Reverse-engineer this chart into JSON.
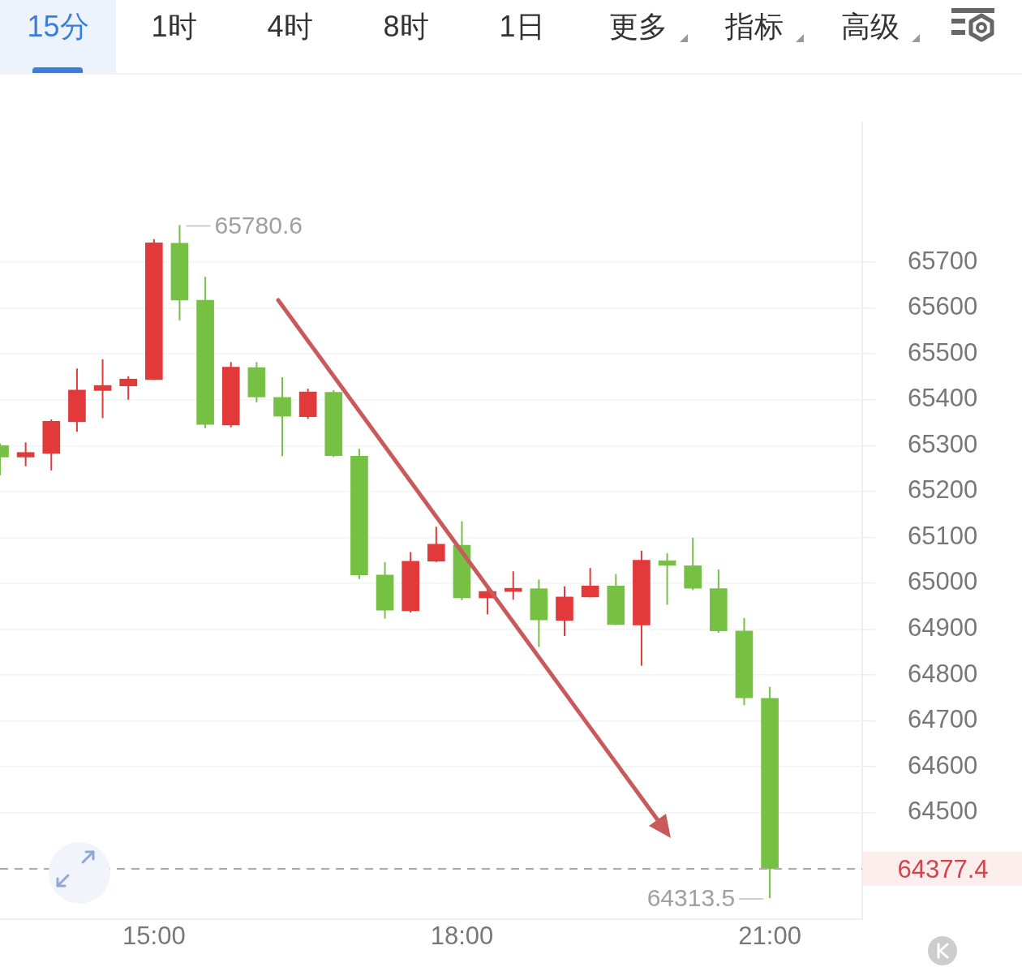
{
  "chart_data": {
    "type": "candlestick",
    "x": [
      13.5,
      13.75,
      14,
      14.25,
      14.5,
      14.75,
      15,
      15.25,
      15.5,
      15.75,
      16,
      16.25,
      16.5,
      16.75,
      17,
      17.25,
      17.5,
      17.75,
      18,
      18.25,
      18.5,
      18.75,
      19,
      19.25,
      19.5,
      19.75,
      20,
      20.25,
      20.5,
      20.75,
      21
    ],
    "ohlc": [
      [
        65300,
        65305,
        65235,
        65275
      ],
      [
        65275,
        65307,
        65255,
        65285
      ],
      [
        65283,
        65357,
        65246,
        65353
      ],
      [
        65352,
        65468,
        65330,
        65421
      ],
      [
        65420,
        65488,
        65360,
        65431
      ],
      [
        65430,
        65451,
        65400,
        65445
      ],
      [
        65444,
        65750,
        65443,
        65742
      ],
      [
        65741,
        65780.6,
        65573,
        65617
      ],
      [
        65617,
        65668,
        65338,
        65346
      ],
      [
        65345,
        65482,
        65340,
        65471
      ],
      [
        65470,
        65482,
        65394,
        65406
      ],
      [
        65405,
        65449,
        65277,
        65364
      ],
      [
        65363,
        65424,
        65358,
        65417
      ],
      [
        65416,
        65421,
        65275,
        65278
      ],
      [
        65277,
        65293,
        65009,
        65018
      ],
      [
        65018,
        65046,
        64923,
        64941
      ],
      [
        64940,
        65068,
        64936,
        65048
      ],
      [
        65048,
        65123,
        65046,
        65085
      ],
      [
        65083,
        65135,
        64963,
        64968
      ],
      [
        64968,
        64994,
        64932,
        64982
      ],
      [
        64982,
        65026,
        64964,
        64989
      ],
      [
        64988,
        65008,
        64861,
        64920
      ],
      [
        64919,
        64993,
        64885,
        64970
      ],
      [
        64970,
        65033,
        64969,
        64994
      ],
      [
        64994,
        65020,
        64909,
        64910
      ],
      [
        64909,
        65071,
        64820,
        65050
      ],
      [
        65049,
        65065,
        64953,
        65039
      ],
      [
        65038,
        65099,
        64985,
        64989
      ],
      [
        64988,
        65030,
        64892,
        64896
      ],
      [
        64896,
        64924,
        64734,
        64750
      ],
      [
        64749,
        64774,
        64313.5,
        64377.4
      ]
    ],
    "colors": [
      "#76c043",
      "#e2393b",
      "#e2393b",
      "#e2393b",
      "#e2393b",
      "#e2393b",
      "#e2393b",
      "#76c043",
      "#76c043",
      "#e2393b",
      "#76c043",
      "#76c043",
      "#e2393b",
      "#76c043",
      "#76c043",
      "#76c043",
      "#e2393b",
      "#e2393b",
      "#76c043",
      "#e2393b",
      "#e2393b",
      "#76c043",
      "#e2393b",
      "#e2393b",
      "#76c043",
      "#e2393b",
      "#76c043",
      "#76c043",
      "#76c043",
      "#76c043",
      "#76c043"
    ],
    "xlim": [
      13.5,
      21.9
    ],
    "xticks": [
      {
        "value": 15,
        "label": "15:00"
      },
      {
        "value": 18,
        "label": "18:00"
      },
      {
        "value": 21,
        "label": "21:00"
      }
    ],
    "ylim": [
      64267,
      66005
    ],
    "yticks": [
      64500,
      64600,
      64700,
      64800,
      64900,
      65000,
      65100,
      65200,
      65300,
      65400,
      65500,
      65600,
      65700
    ],
    "grid": "y",
    "ref_lines": [
      {
        "axis": "y",
        "value": 64377.4,
        "label": "64377.4",
        "color": "#aaaaaa",
        "line_style": "dashed"
      }
    ],
    "annotations": [
      "15分",
      "1时",
      "4时",
      "8时",
      "1日",
      "更多",
      "指标",
      "高级",
      {
        "text": "65780.6",
        "x": 15.25,
        "y": 65780.6
      },
      {
        "text": "64313.5",
        "x": 21,
        "y": 64313.5
      }
    ]
  }
}
